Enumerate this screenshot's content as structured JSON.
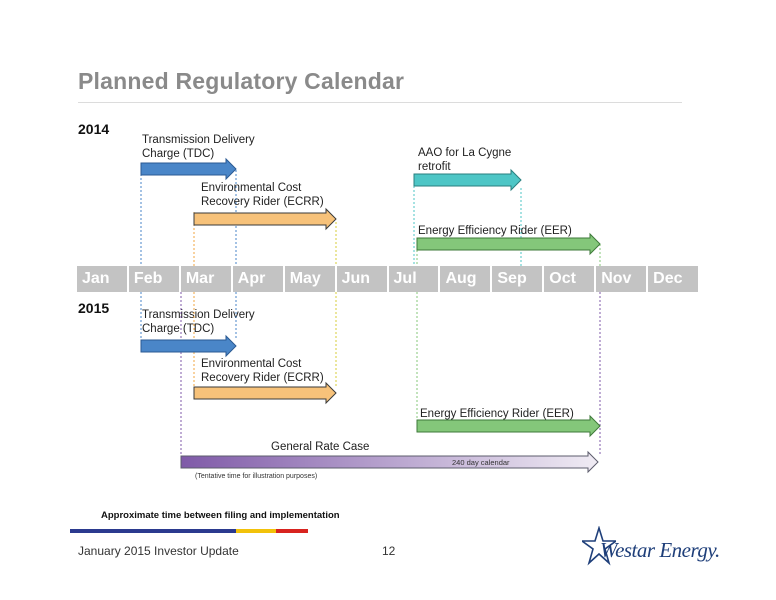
{
  "title": "Planned Regulatory Calendar",
  "year_2014": "2014",
  "year_2015": "2015",
  "months": [
    "Jan",
    "Feb",
    "Mar",
    "Apr",
    "May",
    "Jun",
    "Jul",
    "Aug",
    "Sep",
    "Oct",
    "Nov",
    "Dec"
  ],
  "items_2014": {
    "tdc": [
      "Transmission Delivery",
      "Charge (TDC)"
    ],
    "ecrr": [
      "Environmental Cost",
      "Recovery Rider (ECRR)"
    ],
    "aao": [
      "AAO for La Cygne",
      "retrofit"
    ],
    "eer": "Energy Efficiency Rider (EER)"
  },
  "items_2015": {
    "tdc": [
      "Transmission Delivery",
      "Charge (TDC)"
    ],
    "ecrr": [
      "Environmental Cost",
      "Recovery Rider (ECRR)"
    ],
    "eer": "Energy Efficiency Rider (EER)",
    "grc": "General Rate Case",
    "grc_bar_label": "240 day calendar",
    "tentative_note": "(Tentative time for illustration purposes)"
  },
  "legend": {
    "label": "Approximate time between filing and implementation",
    "colors": [
      "#2b3a8f",
      "#f2c20a",
      "#d8231f"
    ]
  },
  "colors": {
    "tdc": "#4a86c8",
    "ecrr": "#f7c27a",
    "aao": "#4ec6c6",
    "eer": "#84c77a",
    "grc_start": "#7f5aa8",
    "grc_end": "#f0ecf4"
  },
  "footer": {
    "left": "January 2015 Investor Update",
    "page": "12",
    "logo": "Westar Energy."
  }
}
